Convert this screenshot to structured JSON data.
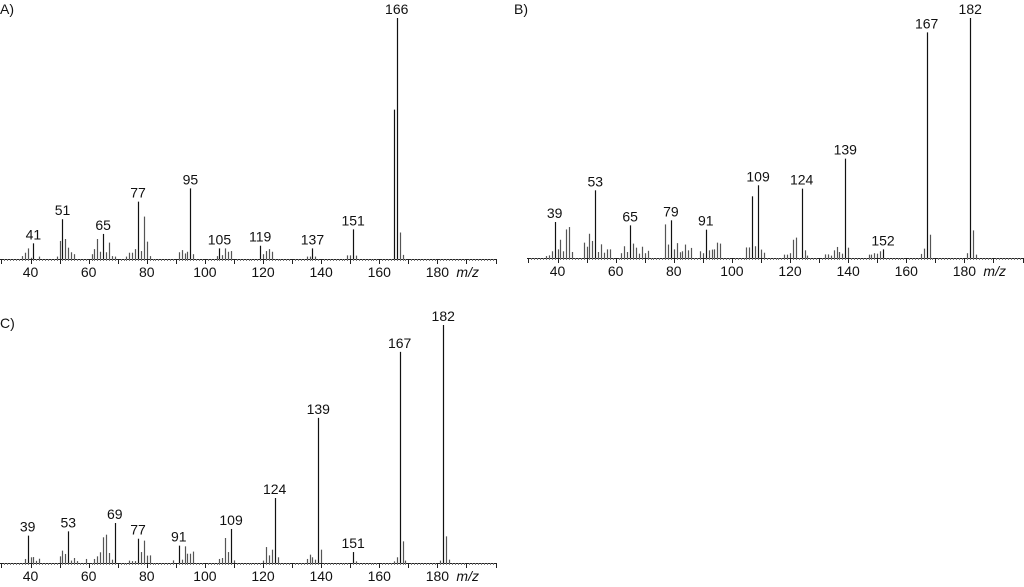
{
  "chart_data": [
    {
      "type": "bar",
      "title": "A)",
      "xlabel": "m/z",
      "xlim": [
        29.5,
        200.5
      ],
      "ylim": [
        0,
        100
      ],
      "xticks": [
        40,
        60,
        80,
        100,
        120,
        140,
        160,
        180
      ],
      "peak_labels": [
        41,
        51,
        65,
        77,
        95,
        105,
        119,
        137,
        151,
        166
      ],
      "peaks": [
        [
          37,
          1.2
        ],
        [
          38,
          2.6
        ],
        [
          39,
          4.4
        ],
        [
          40,
          0.5
        ],
        [
          41,
          6.5
        ],
        [
          43,
          1
        ],
        [
          49,
          1
        ],
        [
          50,
          7.5
        ],
        [
          51,
          16.5
        ],
        [
          52,
          8.3
        ],
        [
          53,
          4.7
        ],
        [
          54,
          2.8
        ],
        [
          55,
          2
        ],
        [
          61,
          2
        ],
        [
          62,
          4.1
        ],
        [
          63,
          8.3
        ],
        [
          64,
          3
        ],
        [
          65,
          10.4
        ],
        [
          66,
          2.8
        ],
        [
          67,
          6.8
        ],
        [
          68,
          1.2
        ],
        [
          69,
          1
        ],
        [
          73,
          1
        ],
        [
          74,
          2.6
        ],
        [
          75,
          2.6
        ],
        [
          76,
          4.1
        ],
        [
          77,
          23.8
        ],
        [
          78,
          3.3
        ],
        [
          79,
          17.6
        ],
        [
          80,
          7.2
        ],
        [
          81,
          1.2
        ],
        [
          91,
          2.8
        ],
        [
          92,
          3.7
        ],
        [
          93,
          2.3
        ],
        [
          94,
          3
        ],
        [
          95,
          29.3
        ],
        [
          96,
          2
        ],
        [
          104,
          1.2
        ],
        [
          105,
          4.4
        ],
        [
          106,
          1.6
        ],
        [
          107,
          4.4
        ],
        [
          108,
          3
        ],
        [
          109,
          3.3
        ],
        [
          119,
          5.5
        ],
        [
          120,
          2
        ],
        [
          121,
          3.3
        ],
        [
          122,
          4.1
        ],
        [
          123,
          3
        ],
        [
          135,
          1
        ],
        [
          136,
          1
        ],
        [
          137,
          4.4
        ],
        [
          138,
          1
        ],
        [
          149,
          1.5
        ],
        [
          150,
          1.5
        ],
        [
          151,
          12.3
        ],
        [
          152,
          1.4
        ],
        [
          165,
          62
        ],
        [
          166,
          100
        ],
        [
          167,
          11
        ],
        [
          168,
          1.7
        ]
      ]
    },
    {
      "type": "bar",
      "title": "B)",
      "xlabel": "m/z",
      "xlim": [
        29.5,
        200.5
      ],
      "ylim": [
        0,
        100
      ],
      "xticks": [
        40,
        60,
        80,
        100,
        120,
        140,
        160,
        180
      ],
      "peak_labels": [
        39,
        53,
        65,
        79,
        91,
        109,
        124,
        139,
        152,
        167,
        182
      ],
      "peaks": [
        [
          36,
          0.8
        ],
        [
          37,
          1.1
        ],
        [
          38,
          2.8
        ],
        [
          39,
          15
        ],
        [
          40,
          3.6
        ],
        [
          41,
          7.6
        ],
        [
          42,
          2.8
        ],
        [
          43,
          11.9
        ],
        [
          44,
          12.9
        ],
        [
          45,
          2.5
        ],
        [
          49,
          6.4
        ],
        [
          50,
          4.7
        ],
        [
          51,
          10.1
        ],
        [
          52,
          7.1
        ],
        [
          53,
          28.2
        ],
        [
          54,
          2.5
        ],
        [
          55,
          5.7
        ],
        [
          56,
          2.2
        ],
        [
          57,
          3.6
        ],
        [
          58,
          3.6
        ],
        [
          62,
          2
        ],
        [
          63,
          4.9
        ],
        [
          64,
          2.5
        ],
        [
          65,
          13.6
        ],
        [
          66,
          6
        ],
        [
          67,
          4.3
        ],
        [
          68,
          1.8
        ],
        [
          69,
          4.7
        ],
        [
          70,
          2
        ],
        [
          71,
          3
        ],
        [
          77,
          14
        ],
        [
          78,
          5.6
        ],
        [
          79,
          15.7
        ],
        [
          80,
          3.6
        ],
        [
          81,
          6.2
        ],
        [
          82,
          2.4
        ],
        [
          83,
          2.8
        ],
        [
          84,
          5.6
        ],
        [
          85,
          3.2
        ],
        [
          86,
          4.2
        ],
        [
          89,
          2.8
        ],
        [
          90,
          2
        ],
        [
          91,
          11.8
        ],
        [
          92,
          3.2
        ],
        [
          93,
          3.5
        ],
        [
          94,
          3.6
        ],
        [
          95,
          6.4
        ],
        [
          96,
          6
        ],
        [
          105,
          4.4
        ],
        [
          106,
          4.4
        ],
        [
          107,
          25.7
        ],
        [
          108,
          4.9
        ],
        [
          109,
          30.3
        ],
        [
          110,
          3.5
        ],
        [
          111,
          2.2
        ],
        [
          118,
          1.4
        ],
        [
          119,
          1.4
        ],
        [
          120,
          2
        ],
        [
          121,
          7.6
        ],
        [
          122,
          8.5
        ],
        [
          124,
          28.9
        ],
        [
          125,
          3.2
        ],
        [
          126,
          1
        ],
        [
          132,
          1.5
        ],
        [
          133,
          1.5
        ],
        [
          134,
          1
        ],
        [
          135,
          3.2
        ],
        [
          136,
          4.6
        ],
        [
          137,
          2.5
        ],
        [
          138,
          1.8
        ],
        [
          139,
          41.4
        ],
        [
          140,
          4.3
        ],
        [
          147,
          1.4
        ],
        [
          148,
          1.4
        ],
        [
          149,
          2
        ],
        [
          150,
          1.8
        ],
        [
          151,
          2.8
        ],
        [
          152,
          3.6
        ],
        [
          165,
          1.7
        ],
        [
          166,
          3.9
        ],
        [
          167,
          94
        ],
        [
          168,
          9.7
        ],
        [
          181,
          2
        ],
        [
          182,
          100
        ],
        [
          183,
          11.5
        ],
        [
          184,
          1.4
        ]
      ]
    },
    {
      "type": "bar",
      "title": "C)",
      "xlabel": "m/z",
      "xlim": [
        29.5,
        200.5
      ],
      "ylim": [
        0,
        100
      ],
      "xticks": [
        40,
        60,
        80,
        100,
        120,
        140,
        160,
        180
      ],
      "peak_labels": [
        39,
        53,
        69,
        77,
        91,
        109,
        124,
        139,
        151,
        167,
        182
      ],
      "peaks": [
        [
          38,
          1.7
        ],
        [
          39,
          11.5
        ],
        [
          40,
          2.4
        ],
        [
          41,
          2.5
        ],
        [
          42,
          0.9
        ],
        [
          43,
          1.8
        ],
        [
          50,
          2.8
        ],
        [
          51,
          5.2
        ],
        [
          52,
          3.8
        ],
        [
          53,
          13.3
        ],
        [
          54,
          1
        ],
        [
          55,
          2.1
        ],
        [
          56,
          0.8
        ],
        [
          59,
          1.7
        ],
        [
          62,
          1.7
        ],
        [
          63,
          2.8
        ],
        [
          64,
          4.5
        ],
        [
          65,
          10.8
        ],
        [
          66,
          11.9
        ],
        [
          67,
          4.2
        ],
        [
          68,
          1.4
        ],
        [
          69,
          16.8
        ],
        [
          74,
          1
        ],
        [
          75,
          0.8
        ],
        [
          76,
          0.8
        ],
        [
          77,
          10.2
        ],
        [
          78,
          4.6
        ],
        [
          79,
          9.4
        ],
        [
          80,
          3.1
        ],
        [
          81,
          3.2
        ],
        [
          89,
          1.1
        ],
        [
          91,
          7.3
        ],
        [
          92,
          1.4
        ],
        [
          93,
          7
        ],
        [
          94,
          3.9
        ],
        [
          95,
          3.9
        ],
        [
          96,
          4.8
        ],
        [
          105,
          1.7
        ],
        [
          106,
          2.1
        ],
        [
          107,
          10.5
        ],
        [
          108,
          4.6
        ],
        [
          109,
          14.3
        ],
        [
          110,
          1.1
        ],
        [
          120,
          1
        ],
        [
          121,
          6.7
        ],
        [
          122,
          3.2
        ],
        [
          123,
          5.6
        ],
        [
          124,
          27.3
        ],
        [
          125,
          2.4
        ],
        [
          135,
          1.7
        ],
        [
          136,
          3.5
        ],
        [
          137,
          2.4
        ],
        [
          138,
          1.4
        ],
        [
          139,
          61
        ],
        [
          140,
          5.6
        ],
        [
          151,
          4.6
        ],
        [
          152,
          0.7
        ],
        [
          165,
          0.7
        ],
        [
          166,
          2.4
        ],
        [
          167,
          88.7
        ],
        [
          168,
          9.1
        ],
        [
          169,
          1
        ],
        [
          181,
          1
        ],
        [
          182,
          100
        ],
        [
          183,
          11.2
        ],
        [
          184,
          1.4
        ]
      ]
    }
  ]
}
